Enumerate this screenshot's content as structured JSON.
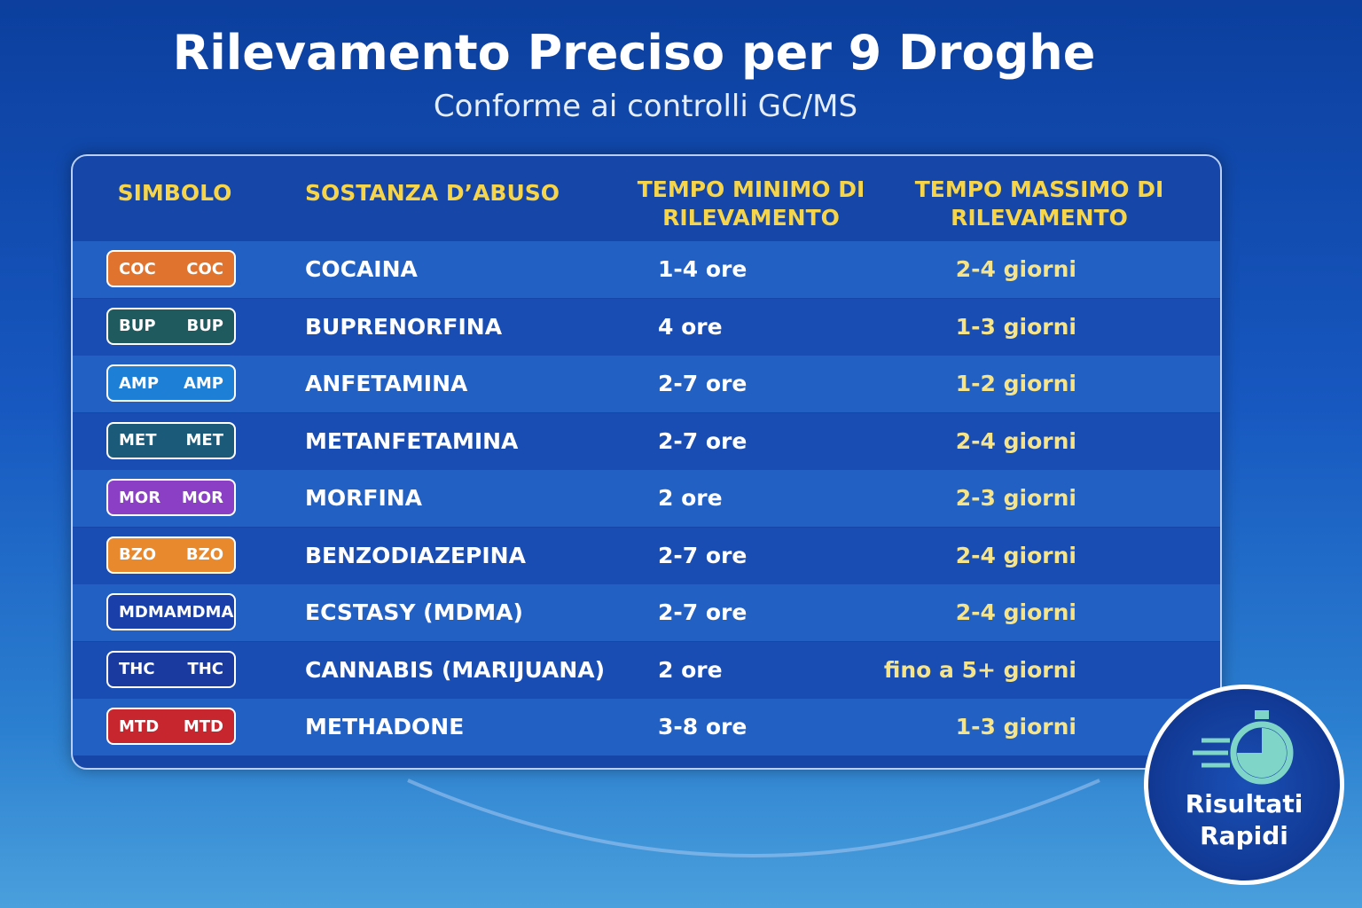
{
  "header": {
    "title": "Rilevamento Preciso per 9 Droghe",
    "subtitle": "Conforme ai controlli GC/MS"
  },
  "table": {
    "columns": [
      "SIMBOLO",
      "SOSTANZA D’ABUSO",
      "TEMPO MINIMO DI RILEVAMENTO",
      "TEMPO MASSIMO DI RILEVAMENTO"
    ],
    "rows": [
      {
        "symbol": "COC",
        "color": "#e0742e",
        "substance": "COCAINA",
        "min": "1-4 ore",
        "max": "2-4 giorni"
      },
      {
        "symbol": "BUP",
        "color": "#1f5a5e",
        "substance": "BUPRENORFINA",
        "min": "4 ore",
        "max": "1-3 giorni"
      },
      {
        "symbol": "AMP",
        "color": "#1e7fd6",
        "substance": "ANFETAMINA",
        "min": "2-7 ore",
        "max": "1-2 giorni"
      },
      {
        "symbol": "MET",
        "color": "#1b5a78",
        "substance": "METANFETAMINA",
        "min": "2-7 ore",
        "max": "2-4 giorni"
      },
      {
        "symbol": "MOR",
        "color": "#8a3fc4",
        "substance": "MORFINA",
        "min": "2 ore",
        "max": "2-3 giorni"
      },
      {
        "symbol": "BZO",
        "color": "#e8892e",
        "substance": "BENZODIAZEPINA",
        "min": "2-7 ore",
        "max": "2-4 giorni"
      },
      {
        "symbol": "MDMA",
        "color": "#1a3fa8",
        "substance": "ECSTASY (MDMA)",
        "min": "2-7 ore",
        "max": "2-4 giorni"
      },
      {
        "symbol": "THC",
        "color": "#1a3aa0",
        "substance": "CANNABIS (MARIJUANA)",
        "min": "2 ore",
        "max": "fino a 5+ giorni"
      },
      {
        "symbol": "MTD",
        "color": "#c8262e",
        "substance": "METHADONE",
        "min": "3-8 ore",
        "max": "1-3 giorni"
      }
    ]
  },
  "badge": {
    "lines": [
      "Risultati",
      "Rapidi"
    ]
  }
}
